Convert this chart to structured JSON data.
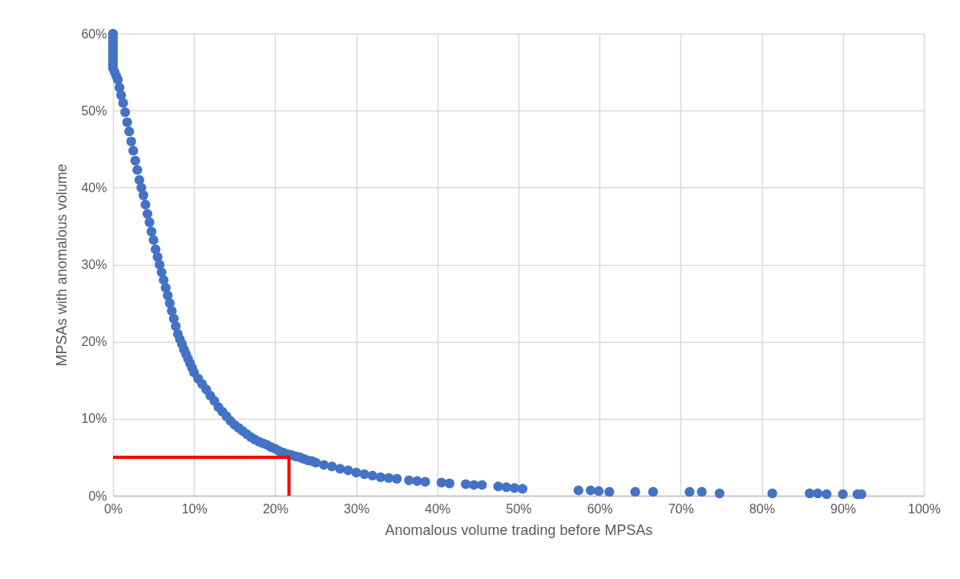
{
  "chart_data": {
    "type": "scatter",
    "xlabel": "Anomalous  volume trading before MPSAs",
    "ylabel": "MPSAs with anomalous  volume",
    "xlim": [
      0,
      100
    ],
    "ylim": [
      0,
      60
    ],
    "xticks": [
      {
        "value": 0,
        "label": "0%"
      },
      {
        "value": 10,
        "label": "10%"
      },
      {
        "value": 20,
        "label": "20%"
      },
      {
        "value": 30,
        "label": "30%"
      },
      {
        "value": 40,
        "label": "40%"
      },
      {
        "value": 50,
        "label": "50%"
      },
      {
        "value": 60,
        "label": "60%"
      },
      {
        "value": 70,
        "label": "70%"
      },
      {
        "value": 80,
        "label": "80%"
      },
      {
        "value": 90,
        "label": "90%"
      },
      {
        "value": 100,
        "label": "100%"
      }
    ],
    "yticks": [
      {
        "value": 0,
        "label": "0%"
      },
      {
        "value": 10,
        "label": "10%"
      },
      {
        "value": 20,
        "label": "20%"
      },
      {
        "value": 30,
        "label": "30%"
      },
      {
        "value": 40,
        "label": "40%"
      },
      {
        "value": 50,
        "label": "50%"
      },
      {
        "value": 60,
        "label": "60%"
      }
    ],
    "grid": true,
    "marker": "circle",
    "series": [
      {
        "color": "#4472c4",
        "x": [
          0,
          0,
          0,
          0,
          0,
          0,
          0,
          0,
          0,
          0,
          0.2,
          0.4,
          0.6,
          0.8,
          1,
          1.25,
          1.5,
          1.75,
          2,
          2.25,
          2.5,
          2.75,
          3,
          3.25,
          3.5,
          3.75,
          4,
          4.25,
          4.5,
          4.75,
          5,
          5.25,
          5.5,
          5.75,
          6,
          6.25,
          6.5,
          6.75,
          7,
          7.25,
          7.5,
          7.75,
          8,
          8.25,
          8.5,
          8.75,
          9,
          9.25,
          9.5,
          9.75,
          10,
          10.5,
          11,
          11.5,
          12,
          12.5,
          13,
          13.5,
          14,
          14.5,
          15,
          15.5,
          16,
          16.5,
          17,
          17.5,
          18,
          18.5,
          19,
          19.5,
          20,
          20.5,
          21,
          21.5,
          22,
          22.5,
          23,
          23.5,
          24,
          24.5,
          25,
          26,
          27,
          28,
          29,
          30,
          31,
          32,
          33,
          34,
          35,
          36.5,
          37.5,
          38.5,
          40.5,
          41.5,
          43.5,
          44.5,
          45.5,
          47.5,
          48.5,
          49.5,
          50.5,
          57.4,
          58.9,
          59.9,
          61.2,
          64.4,
          66.6,
          71.1,
          72.6,
          74.8,
          81.3,
          85.9,
          86.9,
          88,
          90,
          91.8,
          92.3
        ],
        "values": [
          60,
          59.5,
          59,
          58.5,
          58,
          57.5,
          57,
          56.5,
          56,
          55.5,
          55,
          54.5,
          54,
          53,
          52,
          51,
          49.8,
          48.5,
          47.3,
          46,
          44.8,
          43.5,
          42.3,
          41,
          40,
          39,
          37.8,
          36.6,
          35.5,
          34.3,
          33.2,
          32,
          31,
          30,
          29,
          28,
          27,
          26,
          25,
          24,
          23,
          22,
          21,
          20.3,
          19.7,
          19,
          18.4,
          17.8,
          17.2,
          16.6,
          16,
          15.2,
          14.5,
          13.8,
          13,
          12.3,
          11.5,
          10.9,
          10.3,
          9.7,
          9.2,
          8.8,
          8.4,
          8,
          7.6,
          7.3,
          7,
          6.8,
          6.6,
          6.3,
          6.1,
          5.8,
          5.6,
          5.4,
          5.3,
          5.1,
          5,
          4.8,
          4.6,
          4.5,
          4.3,
          4,
          3.8,
          3.5,
          3.3,
          3,
          2.8,
          2.6,
          2.4,
          2.3,
          2.2,
          2,
          1.9,
          1.8,
          1.7,
          1.6,
          1.5,
          1.4,
          1.4,
          1.2,
          1.1,
          1,
          0.9,
          0.7,
          0.7,
          0.6,
          0.5,
          0.5,
          0.5,
          0.5,
          0.5,
          0.3,
          0.3,
          0.3,
          0.3,
          0.2,
          0.2,
          0.2,
          0.2
        ]
      },
      {
        "type": "line",
        "color": "#ff0000",
        "marker": "none",
        "x": [
          0,
          21.7,
          21.7
        ],
        "values": [
          5,
          5,
          0
        ]
      }
    ]
  }
}
